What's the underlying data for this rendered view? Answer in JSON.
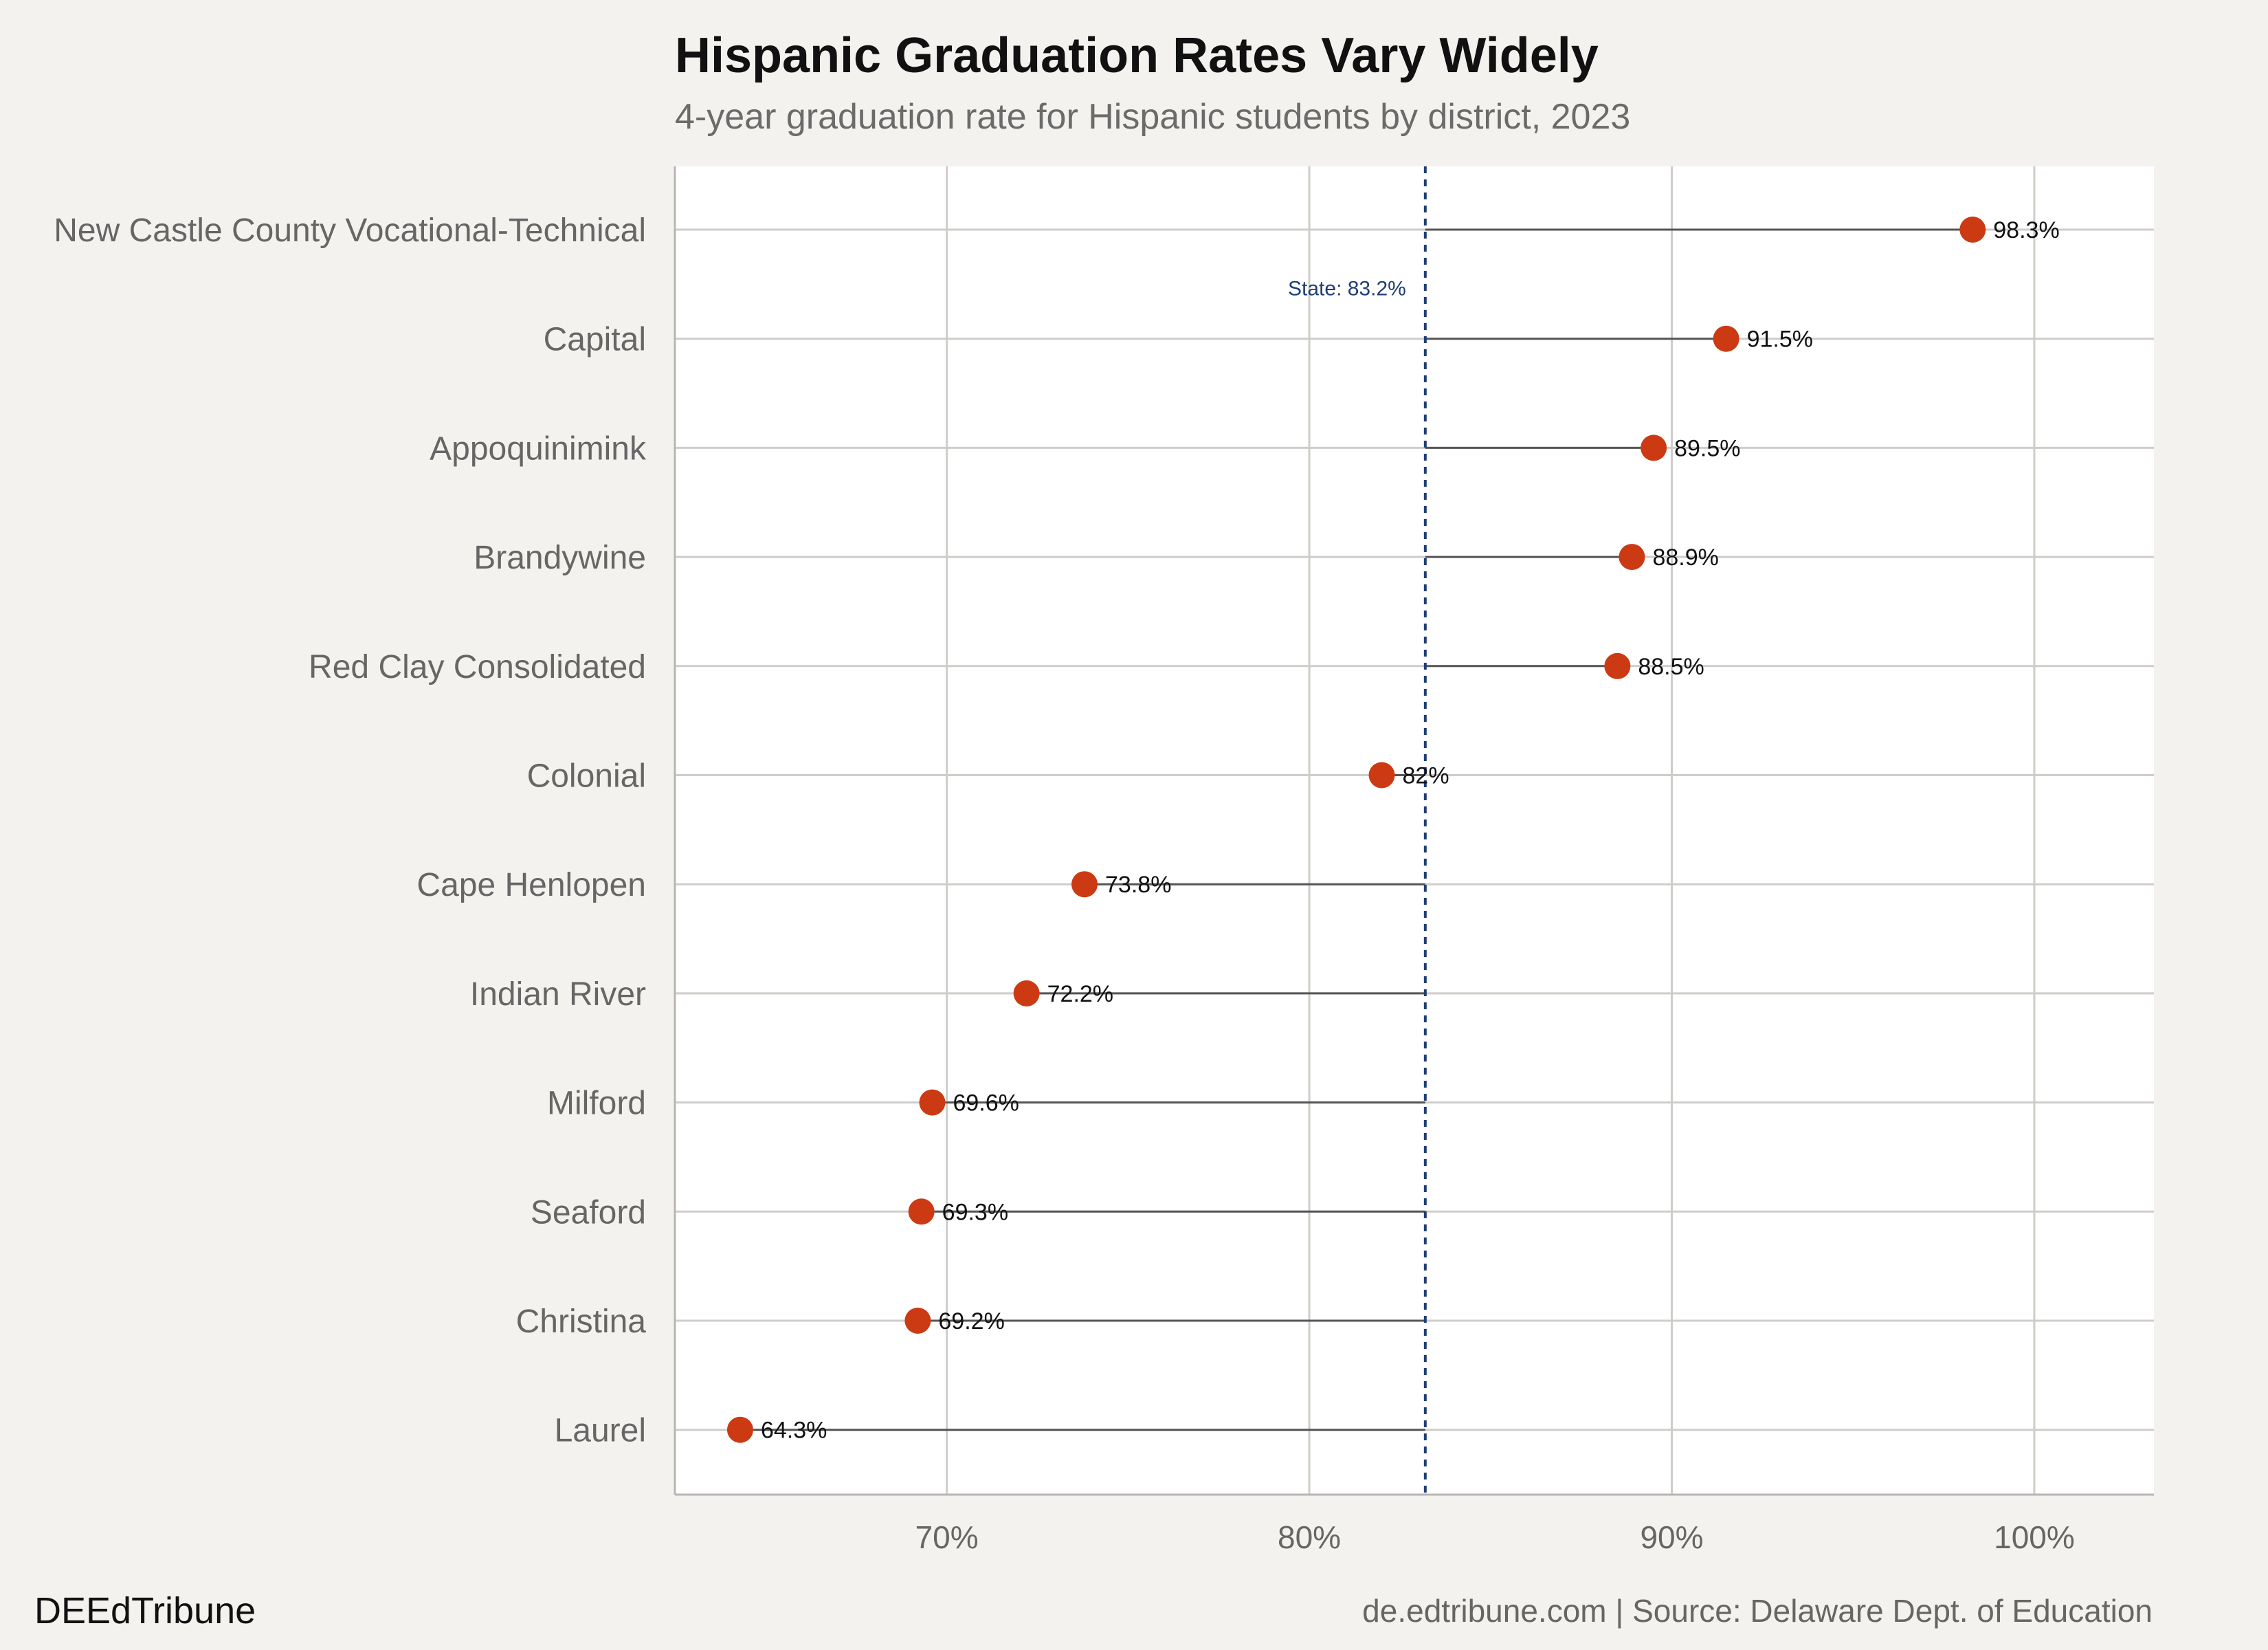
{
  "title": "Hispanic Graduation Rates Vary Widely",
  "subtitle": "4-year graduation rate for Hispanic students by district, 2023",
  "footer": {
    "brand": "DEEdTribune",
    "source": "de.edtribune.com | Source: Delaware Dept. of Education"
  },
  "colors": {
    "background": "#f4f2ee",
    "panel": "#ffffff",
    "grid": "#cfcdc9",
    "dot": "#cc3a13",
    "stem": "#555555",
    "reference_line": "#1f3e73"
  },
  "chart_data": {
    "type": "lollipop",
    "categories": [
      "New Castle County Vocational-Technical",
      "Capital",
      "Appoquinimink",
      "Brandywine",
      "Red Clay Consolidated",
      "Colonial",
      "Cape Henlopen",
      "Indian River",
      "Milford",
      "Seaford",
      "Christina",
      "Laurel"
    ],
    "values": [
      98.3,
      91.5,
      89.5,
      88.9,
      88.5,
      82,
      73.8,
      72.2,
      69.6,
      69.3,
      69.2,
      64.3
    ],
    "value_labels": [
      "98.3%",
      "91.5%",
      "89.5%",
      "88.9%",
      "88.5%",
      "82%",
      "73.8%",
      "72.2%",
      "69.6%",
      "69.3%",
      "69.2%",
      "64.3%"
    ],
    "reference": {
      "value": 83.2,
      "label": "State: 83.2%"
    },
    "x_ticks": [
      70,
      80,
      90,
      100
    ],
    "x_tick_labels": [
      "70%",
      "80%",
      "90%",
      "100%"
    ],
    "xlim": [
      62.5,
      103.3
    ],
    "grid": true
  }
}
